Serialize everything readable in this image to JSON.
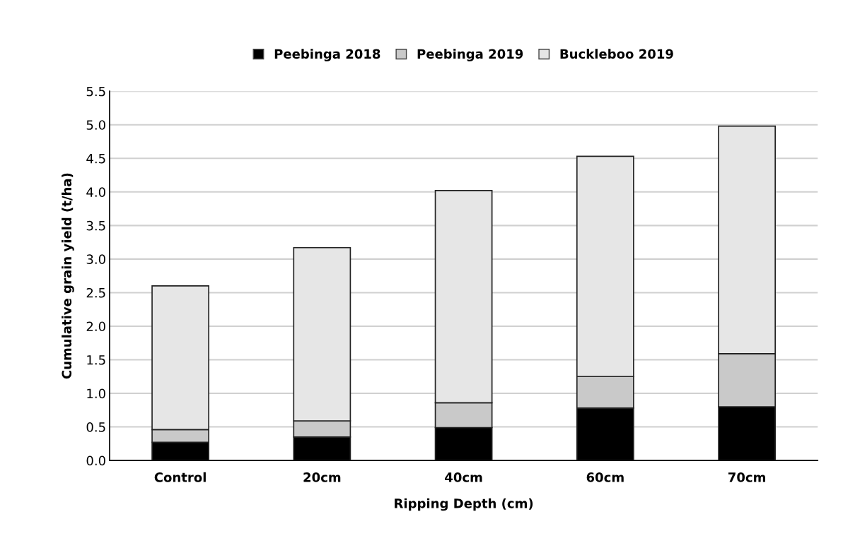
{
  "chart_data": {
    "type": "bar",
    "stacked": true,
    "xlabel": "Ripping Depth (cm)",
    "ylabel": "Cumulative grain yield (t/ha)",
    "categories": [
      "Control",
      "20cm",
      "40cm",
      "60cm",
      "70cm"
    ],
    "series": [
      {
        "name": "Peebinga 2018",
        "color": "#000000",
        "values": [
          0.27,
          0.35,
          0.49,
          0.78,
          0.8
        ]
      },
      {
        "name": "Peebinga 2019",
        "color": "#c9c9c9",
        "values": [
          0.19,
          0.24,
          0.37,
          0.47,
          0.79
        ]
      },
      {
        "name": "Buckleboo 2019",
        "color": "#e6e6e6",
        "values": [
          2.14,
          2.58,
          3.16,
          3.28,
          3.39
        ]
      }
    ],
    "ylim": [
      0,
      5.5
    ],
    "yticks": [
      {
        "value": 0,
        "label": "0.0"
      },
      0.5,
      {
        "value": 1,
        "label": "1.0"
      },
      1.5,
      {
        "value": 2,
        "label": "2.0"
      },
      2.5,
      {
        "value": 3,
        "label": "3.0"
      },
      3.5,
      {
        "value": 4,
        "label": "4.0"
      },
      4.5,
      {
        "value": 5,
        "label": "5.0"
      },
      5.5
    ],
    "grid": "y",
    "legend": "top"
  }
}
